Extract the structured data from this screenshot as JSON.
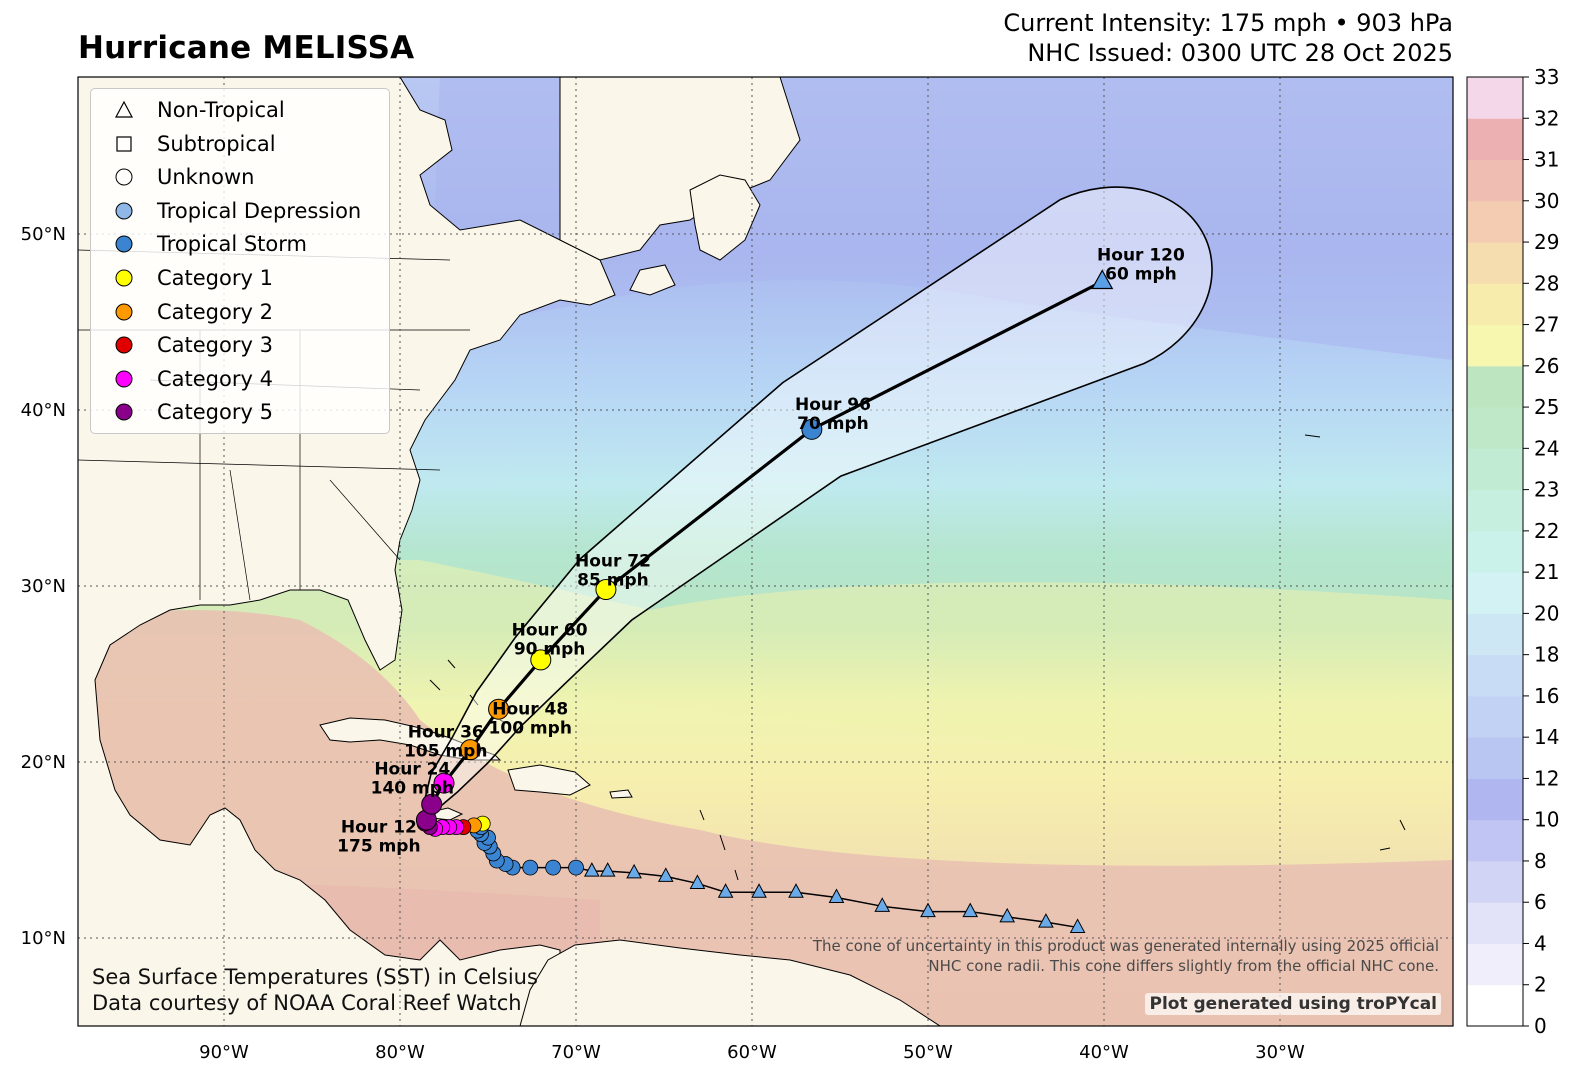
{
  "title": "Hurricane MELISSA",
  "meta": {
    "intensity": "Current Intensity: 175 mph • 903 hPa",
    "issued": "NHC Issued: 0300 UTC 28 Oct 2025"
  },
  "legend": [
    {
      "label": "Non-Tropical",
      "shape": "triangle",
      "color": "none"
    },
    {
      "label": "Subtropical",
      "shape": "square",
      "color": "none"
    },
    {
      "label": "Unknown",
      "shape": "circle",
      "color": "none"
    },
    {
      "label": "Tropical Depression",
      "shape": "circle",
      "color": "#8fb8e8"
    },
    {
      "label": "Tropical Storm",
      "shape": "circle",
      "color": "#3a84d2"
    },
    {
      "label": "Category 1",
      "shape": "circle",
      "color": "#ffff00"
    },
    {
      "label": "Category 2",
      "shape": "circle",
      "color": "#ff9900"
    },
    {
      "label": "Category 3",
      "shape": "circle",
      "color": "#e00000"
    },
    {
      "label": "Category 4",
      "shape": "circle",
      "color": "#ff00ff"
    },
    {
      "label": "Category 5",
      "shape": "circle",
      "color": "#8b008b"
    }
  ],
  "colorbar": {
    "ticks": [
      "0",
      "2",
      "4",
      "6",
      "8",
      "10",
      "12",
      "14",
      "16",
      "18",
      "20",
      "21",
      "22",
      "23",
      "24",
      "25",
      "26",
      "27",
      "28",
      "29",
      "30",
      "31",
      "32",
      "33"
    ]
  },
  "axes": {
    "lon_labels": [
      {
        "lon": -90,
        "label": "90°W"
      },
      {
        "lon": -80,
        "label": "80°W"
      },
      {
        "lon": -70,
        "label": "70°W"
      },
      {
        "lon": -60,
        "label": "60°W"
      },
      {
        "lon": -50,
        "label": "50°W"
      },
      {
        "lon": -40,
        "label": "40°W"
      },
      {
        "lon": -30,
        "label": "30°W"
      }
    ],
    "lat_labels": [
      {
        "lat": 10,
        "label": "10°N"
      },
      {
        "lat": 20,
        "label": "20°N"
      },
      {
        "lat": 30,
        "label": "30°N"
      },
      {
        "lat": 40,
        "label": "40°N"
      },
      {
        "lat": 50,
        "label": "50°N"
      }
    ]
  },
  "track": {
    "past": [
      {
        "lon": -41.5,
        "lat": 10.6,
        "c": "td"
      },
      {
        "lon": -43.3,
        "lat": 10.9,
        "c": "td"
      },
      {
        "lon": -45.5,
        "lat": 11.2,
        "c": "td"
      },
      {
        "lon": -47.6,
        "lat": 11.5,
        "c": "td"
      },
      {
        "lon": -50.0,
        "lat": 11.5,
        "c": "td"
      },
      {
        "lon": -52.6,
        "lat": 11.8,
        "c": "td"
      },
      {
        "lon": -55.2,
        "lat": 12.3,
        "c": "td"
      },
      {
        "lon": -57.5,
        "lat": 12.6,
        "c": "td"
      },
      {
        "lon": -59.6,
        "lat": 12.6,
        "c": "td"
      },
      {
        "lon": -61.5,
        "lat": 12.6,
        "c": "td"
      },
      {
        "lon": -63.1,
        "lat": 13.1,
        "c": "td"
      },
      {
        "lon": -64.9,
        "lat": 13.5,
        "c": "td"
      },
      {
        "lon": -66.7,
        "lat": 13.7,
        "c": "td"
      },
      {
        "lon": -68.2,
        "lat": 13.8,
        "c": "td"
      },
      {
        "lon": -69.1,
        "lat": 13.8,
        "c": "td"
      },
      {
        "lon": -70.0,
        "lat": 14.0,
        "c": "ts"
      },
      {
        "lon": -71.3,
        "lat": 14.0,
        "c": "ts"
      },
      {
        "lon": -72.6,
        "lat": 14.0,
        "c": "ts"
      },
      {
        "lon": -73.6,
        "lat": 14.0,
        "c": "ts"
      },
      {
        "lon": -74.0,
        "lat": 14.2,
        "c": "ts"
      },
      {
        "lon": -74.5,
        "lat": 14.4,
        "c": "ts"
      },
      {
        "lon": -74.7,
        "lat": 14.8,
        "c": "ts"
      },
      {
        "lon": -74.9,
        "lat": 15.2,
        "c": "ts"
      },
      {
        "lon": -75.2,
        "lat": 15.4,
        "c": "ts"
      },
      {
        "lon": -75.0,
        "lat": 15.7,
        "c": "ts"
      },
      {
        "lon": -75.4,
        "lat": 15.9,
        "c": "ts"
      },
      {
        "lon": -75.6,
        "lat": 16.1,
        "c": "ts"
      },
      {
        "lon": -75.4,
        "lat": 16.3,
        "c": "ts"
      },
      {
        "lon": -75.3,
        "lat": 16.5,
        "c": "c1"
      },
      {
        "lon": -75.8,
        "lat": 16.4,
        "c": "c2"
      },
      {
        "lon": -76.4,
        "lat": 16.3,
        "c": "c3"
      },
      {
        "lon": -76.8,
        "lat": 16.3,
        "c": "c4"
      },
      {
        "lon": -77.2,
        "lat": 16.3,
        "c": "c4"
      },
      {
        "lon": -77.6,
        "lat": 16.3,
        "c": "c4"
      },
      {
        "lon": -78.0,
        "lat": 16.2,
        "c": "c4"
      },
      {
        "lon": -78.3,
        "lat": 16.3,
        "c": "c5"
      },
      {
        "lon": -78.6,
        "lat": 16.5,
        "c": "c5"
      }
    ],
    "forecast": [
      {
        "lon": -78.5,
        "lat": 16.7,
        "c": "c5",
        "label": "Hour 12",
        "wind": "175 mph",
        "lx": -81.2,
        "ly": 16.0
      },
      {
        "lon": -78.2,
        "lat": 17.6,
        "c": "c5",
        "label": "",
        "wind": ""
      },
      {
        "lon": -77.5,
        "lat": 18.8,
        "c": "c4",
        "label": "Hour 24",
        "wind": "140 mph",
        "lx": -79.3,
        "ly": 19.3
      },
      {
        "lon": -76.0,
        "lat": 20.7,
        "c": "c2",
        "label": "Hour 36",
        "wind": "105 mph",
        "lx": -77.4,
        "ly": 21.4
      },
      {
        "lon": -74.4,
        "lat": 23.0,
        "c": "c2",
        "label": "Hour 48",
        "wind": "100 mph",
        "lx": -72.6,
        "ly": 22.7
      },
      {
        "lon": -72.0,
        "lat": 25.8,
        "c": "c1",
        "label": "Hour 60",
        "wind": "90 mph",
        "lx": -71.5,
        "ly": 27.2
      },
      {
        "lon": -68.3,
        "lat": 29.8,
        "c": "c1",
        "label": "Hour 72",
        "wind": "85 mph",
        "lx": -67.9,
        "ly": 31.1
      },
      {
        "lon": -56.6,
        "lat": 38.9,
        "c": "ts",
        "label": "Hour 96",
        "wind": "70 mph",
        "lx": -55.4,
        "ly": 40.0
      },
      {
        "lon": -40.1,
        "lat": 47.3,
        "c": "nt",
        "label": "Hour 120",
        "wind": "60 mph",
        "lx": -37.9,
        "ly": 48.5
      }
    ]
  },
  "cone_note": {
    "line1": "The cone of uncertainty in this product was generated internally using 2025 official",
    "line2": "NHC cone radii. This cone differs slightly from the official NHC cone."
  },
  "credit": "Plot generated using troPYcal",
  "source": {
    "line1": "Sea Surface Temperatures (SST) in Celsius",
    "line2": "Data courtesy of NOAA Coral Reef Watch"
  }
}
